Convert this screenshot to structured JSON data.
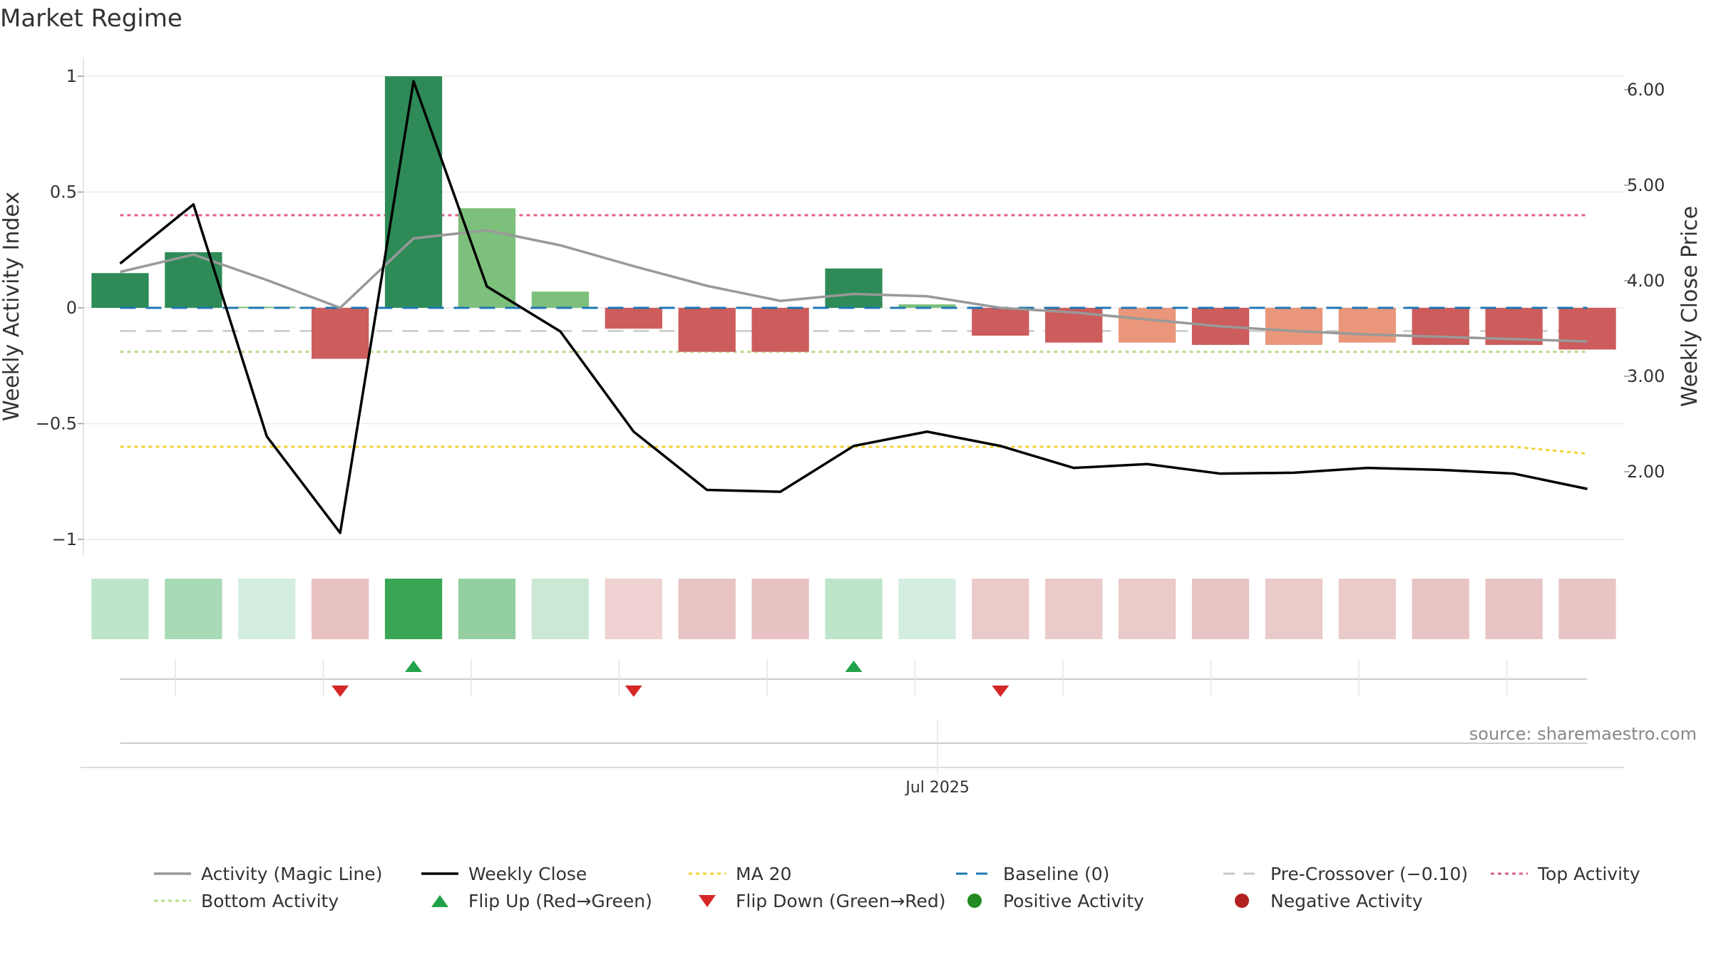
{
  "title": "Market Regime",
  "source": "source: sharemaestro.com",
  "chart_data": {
    "type": "bar",
    "x": [
      "2025-04-14",
      "2025-04-21",
      "2025-04-28",
      "2025-05-05",
      "2025-05-12",
      "2025-05-19",
      "2025-05-26",
      "2025-06-02",
      "2025-06-09",
      "2025-06-16",
      "2025-06-23",
      "2025-06-30",
      "2025-07-07",
      "2025-07-14",
      "2025-07-21",
      "2025-07-28",
      "2025-08-04",
      "2025-08-11",
      "2025-08-18",
      "2025-08-25",
      "2025-09-01"
    ],
    "x_tick_labels": [
      {
        "date": "2025-07-01",
        "label": "Jul 2025"
      }
    ],
    "activity": [
      0.15,
      0.24,
      0.005,
      -0.22,
      1.0,
      0.43,
      0.07,
      -0.09,
      -0.19,
      -0.19,
      0.17,
      0.015,
      -0.12,
      -0.15,
      -0.15,
      -0.16,
      -0.16,
      -0.15,
      -0.16,
      -0.16,
      -0.18
    ],
    "bar_colors": [
      "#2e8b57",
      "#2e8b57",
      "#7dc07b",
      "#cd5c5c",
      "#2e8b57",
      "#7dc07b",
      "#7dc07b",
      "#cd5c5c",
      "#cd5c5c",
      "#cd5c5c",
      "#2e8b57",
      "#7dc07b",
      "#cd5c5c",
      "#cd5c5c",
      "#e9967a",
      "#cd5c5c",
      "#e9967a",
      "#e9967a",
      "#cd5c5c",
      "#cd5c5c",
      "#cd5c5c"
    ],
    "magic_line": [
      0.155,
      0.23,
      0.12,
      0.0,
      0.3,
      0.335,
      0.27,
      0.18,
      0.095,
      0.03,
      0.06,
      0.05,
      0.0,
      -0.02,
      -0.05,
      -0.08,
      -0.1,
      -0.115,
      -0.125,
      -0.135,
      -0.145
    ],
    "weekly_close": [
      4.18,
      4.8,
      2.37,
      1.36,
      6.09,
      3.94,
      3.47,
      2.42,
      1.81,
      1.79,
      2.27,
      2.42,
      2.27,
      2.04,
      2.08,
      1.98,
      1.99,
      2.04,
      2.02,
      1.98,
      1.82
    ],
    "ma20": [
      -0.6,
      -0.6,
      -0.6,
      -0.6,
      -0.6,
      -0.6,
      -0.6,
      -0.6,
      -0.6,
      -0.6,
      -0.6,
      -0.6,
      -0.6,
      -0.6,
      -0.6,
      -0.6,
      -0.6,
      -0.6,
      -0.6,
      -0.6,
      -0.63
    ],
    "baseline": 0,
    "pre_crossover": -0.1,
    "top_activity": 0.4,
    "bottom_activity": -0.19,
    "heat_colors": [
      "#bde5c9",
      "#a8dab6",
      "#d3ede0",
      "#e8c1c1",
      "#3aa655",
      "#93cfa1",
      "#cbe8d4",
      "#f0d2d2",
      "#e8c4c4",
      "#e8c2c2",
      "#bde5c9",
      "#d3ede0",
      "#ebcaca",
      "#ebcaca",
      "#ebcaca",
      "#e8c4c4",
      "#ebcaca",
      "#ebcaca",
      "#e8c4c4",
      "#e8c4c4",
      "#e8c4c4"
    ],
    "flip_up_weeks": [
      4,
      10
    ],
    "flip_down_weeks": [
      3,
      7,
      12
    ],
    "y_left": {
      "label": "Weekly Activity Index",
      "range": [
        -1.08,
        1.08
      ],
      "ticks": [
        1,
        0.5,
        0,
        -0.5,
        -1
      ],
      "tick_labels": [
        "1",
        "0.5",
        "0",
        "−0.5",
        "−1"
      ]
    },
    "y_right": {
      "label": "Weekly Close Price",
      "range": [
        1.25,
        6.2
      ],
      "ticks": [
        6,
        5,
        4,
        3,
        2
      ],
      "tick_labels": [
        "6.00",
        "5.00",
        "4.00",
        "3.00",
        "2.00"
      ]
    },
    "grid": true,
    "legend": {
      "position": "bottom",
      "items": [
        {
          "label": "Activity (Magic Line)",
          "kind": "line",
          "color": "#999999"
        },
        {
          "label": "Weekly Close",
          "kind": "line",
          "color": "#000000"
        },
        {
          "label": "MA 20",
          "kind": "dotted",
          "color": "#f1d333"
        },
        {
          "label": "Baseline (0)",
          "kind": "dashed",
          "color": "#1f77b4"
        },
        {
          "label": "Pre-Crossover (−0.10)",
          "kind": "dashed",
          "color": "#c8c8c8"
        },
        {
          "label": "Top Activity",
          "kind": "dotted",
          "color": "#e0607e"
        },
        {
          "label": "Bottom Activity",
          "kind": "dotted",
          "color": "#b5dc86"
        },
        {
          "label": "Flip Up (Red→Green)",
          "kind": "triangle-up",
          "color": "#22a24a"
        },
        {
          "label": "Flip Down (Green→Red)",
          "kind": "triangle-down",
          "color": "#d62728"
        },
        {
          "label": "Positive Activity",
          "kind": "dot",
          "color": "#228b22"
        },
        {
          "label": "Negative Activity",
          "kind": "dot",
          "color": "#b22222"
        }
      ]
    }
  }
}
